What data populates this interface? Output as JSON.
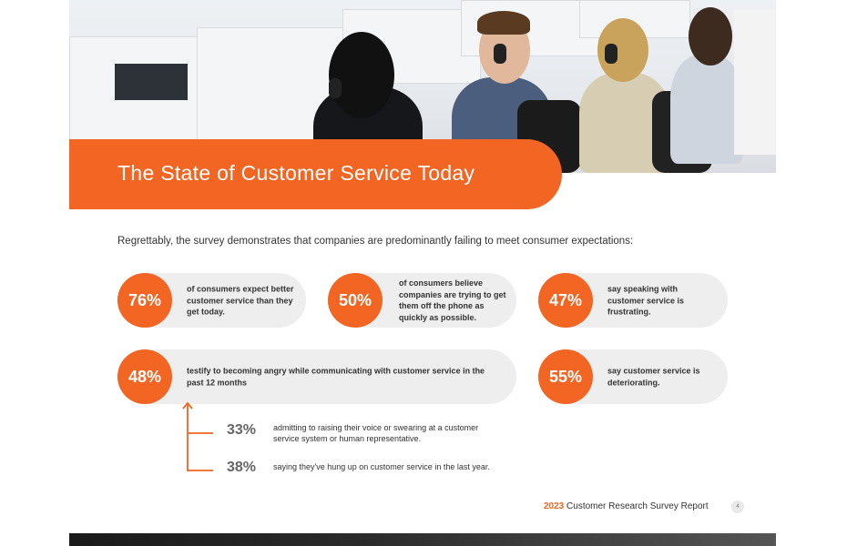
{
  "header": {
    "title": "The State of Customer Service Today"
  },
  "intro": "Regrettably, the survey demonstrates that companies are predominantly failing to meet consumer expectations:",
  "stats": [
    {
      "pct": "76%",
      "text": "of consumers expect better customer service than they get today."
    },
    {
      "pct": "50%",
      "text": "of consumers believe companies are trying to get them off the phone as quickly as possible."
    },
    {
      "pct": "47%",
      "text": "say speaking with customer service is frustrating."
    },
    {
      "pct": "48%",
      "text": "testify to becoming angry while communicating with customer service in the past 12 months"
    },
    {
      "pct": "55%",
      "text": "say customer service is deteriorating."
    }
  ],
  "sub_stats": [
    {
      "pct": "33%",
      "text": "admitting to raising their voice or swearing at a customer service system or human representative."
    },
    {
      "pct": "38%",
      "text": "saying they've hung up on customer service in the last year."
    }
  ],
  "footer": {
    "year": "2023",
    "label": "Customer Research Survey Report",
    "page": "4"
  },
  "colors": {
    "accent": "#f26522",
    "pill": "#eeeeee"
  }
}
